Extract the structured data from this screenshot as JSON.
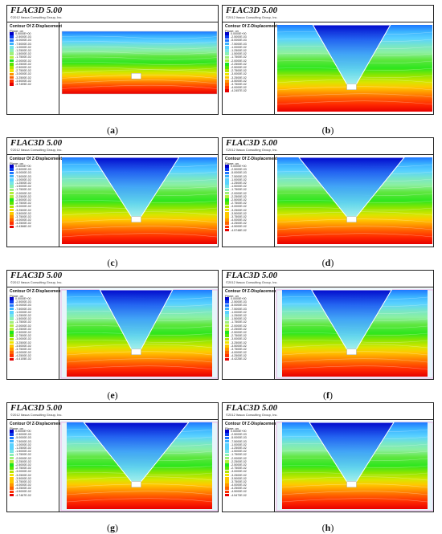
{
  "software": "FLAC3D 5.00",
  "copyright": "©2012 Itasca Consulting Group, Inc.",
  "legend_title": "Contour Of Z-Displacement",
  "plane_label": "Plane: on",
  "colors": {
    "scale": [
      "#0000c8",
      "#0a3cf0",
      "#1e78ff",
      "#3cb4ff",
      "#5ad2ff",
      "#78e6e6",
      "#8cf0b4",
      "#a0f078",
      "#b4f03c",
      "#1ee61e",
      "#5ae600",
      "#b4e600",
      "#f0e600",
      "#ffc800",
      "#ff9600",
      "#ff6400",
      "#ff3200",
      "#e60000"
    ]
  },
  "panels": [
    {
      "id": "a",
      "caption": "(a)",
      "legend": [
        "0.0000E+00",
        "-2.5000E-03",
        "-5.0000E-03",
        "-7.5000E-03",
        "-1.0000E-02",
        "-1.2500E-02",
        "-1.5000E-02",
        "-1.7500E-02",
        "-2.0000E-02",
        "-2.2500E-02",
        "-2.5000E-02",
        "-2.7500E-02",
        "-3.0000E-02",
        "-3.2500E-02",
        "-3.5000E-02",
        "-3.7499E-02"
      ]
    },
    {
      "id": "b",
      "caption": "(b)",
      "legend": [
        "0.0000E+00",
        "-2.5000E-03",
        "-5.0000E-03",
        "-7.5000E-03",
        "-1.0000E-02",
        "-1.2500E-02",
        "-1.5000E-02",
        "-1.7500E-02",
        "-2.0000E-02",
        "-2.2500E-02",
        "-2.5000E-02",
        "-2.7500E-02",
        "-3.0000E-02",
        "-3.2500E-02",
        "-3.5000E-02",
        "-3.7500E-02",
        "-4.0000E-02",
        "-4.2457E-02"
      ]
    },
    {
      "id": "c",
      "caption": "(c)",
      "legend": [
        "0.0000E+00",
        "-2.5000E-03",
        "-5.0000E-03",
        "-7.5000E-03",
        "-1.0000E-02",
        "-1.2500E-02",
        "-1.5000E-02",
        "-1.7500E-02",
        "-2.0000E-02",
        "-2.2500E-02",
        "-2.5000E-02",
        "-2.7500E-02",
        "-3.0000E-02",
        "-3.2500E-02",
        "-3.5000E-02",
        "-3.7500E-02",
        "-4.0000E-02",
        "-4.2500E-02",
        "-4.4366E-02"
      ]
    },
    {
      "id": "d",
      "caption": "(d)",
      "legend": [
        "0.0000E+00",
        "-2.5000E-03",
        "-5.0000E-03",
        "-7.5000E-03",
        "-1.0000E-02",
        "-1.2500E-02",
        "-1.5000E-02",
        "-1.7500E-02",
        "-2.0000E-02",
        "-2.2500E-02",
        "-2.5000E-02",
        "-2.7500E-02",
        "-3.0000E-02",
        "-3.2500E-02",
        "-3.5000E-02",
        "-3.7500E-02",
        "-4.0000E-02",
        "-4.2500E-02",
        "-4.5000E-02",
        "-4.5748E-02"
      ]
    },
    {
      "id": "e",
      "caption": "(e)",
      "legend": [
        "0.0000E+00",
        "-2.5000E-03",
        "-5.0000E-03",
        "-7.5000E-03",
        "-1.0000E-02",
        "-1.2500E-02",
        "-1.5000E-02",
        "-1.7500E-02",
        "-2.0000E-02",
        "-2.2500E-02",
        "-2.5000E-02",
        "-2.7500E-02",
        "-3.0000E-02",
        "-3.2500E-02",
        "-3.5000E-02",
        "-3.7500E-02",
        "-4.0000E-02",
        "-4.2500E-02",
        "-4.4105E-02"
      ]
    },
    {
      "id": "f",
      "caption": "(f)",
      "legend": [
        "0.0000E+00",
        "-2.5000E-03",
        "-5.0000E-03",
        "-7.5000E-03",
        "-1.0000E-02",
        "-1.2500E-02",
        "-1.5000E-02",
        "-1.7500E-02",
        "-2.0000E-02",
        "-2.2500E-02",
        "-2.5000E-02",
        "-2.7500E-02",
        "-3.0000E-02",
        "-3.2500E-02",
        "-3.5000E-02",
        "-3.7500E-02",
        "-4.0000E-02",
        "-4.2500E-02",
        "-4.4225E-02"
      ]
    },
    {
      "id": "g",
      "caption": "(g)",
      "legend": [
        "0.0000E+00",
        "-2.5000E-03",
        "-5.0000E-03",
        "-7.5000E-03",
        "-1.0000E-02",
        "-1.2500E-02",
        "-1.5000E-02",
        "-1.7500E-02",
        "-2.0000E-02",
        "-2.2500E-02",
        "-2.5000E-02",
        "-2.7500E-02",
        "-3.0000E-02",
        "-3.2500E-02",
        "-3.5000E-02",
        "-3.7500E-02",
        "-4.0000E-02",
        "-4.2500E-02",
        "-4.5000E-02",
        "-4.7467E-02"
      ]
    },
    {
      "id": "h",
      "caption": "(h)",
      "legend": [
        "0.0000E+00",
        "-2.5000E-03",
        "-5.0000E-03",
        "-7.5000E-03",
        "-1.0000E-02",
        "-1.2500E-02",
        "-1.5000E-02",
        "-1.7500E-02",
        "-2.0000E-02",
        "-2.2500E-02",
        "-2.5000E-02",
        "-2.7500E-02",
        "-3.0000E-02",
        "-3.2500E-02",
        "-3.5000E-02",
        "-3.7500E-02",
        "-4.0000E-02",
        "-4.2500E-02",
        "-4.5000E-02",
        "-4.5473E-02"
      ]
    }
  ]
}
